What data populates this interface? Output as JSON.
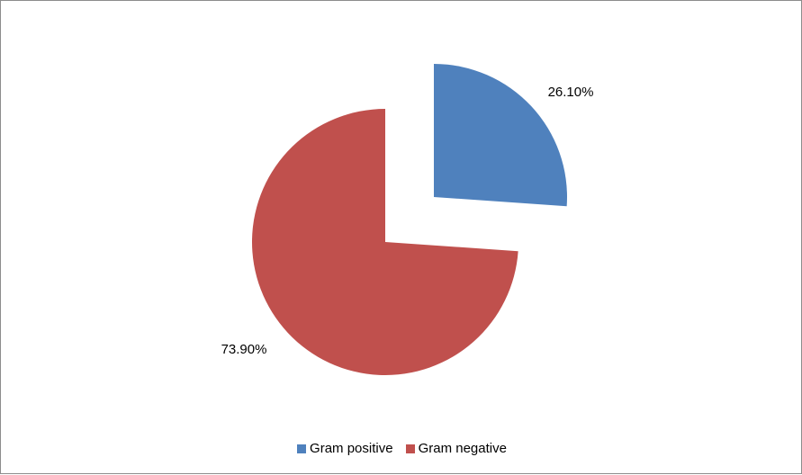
{
  "chart_data": {
    "type": "pie",
    "exploded": true,
    "start_angle_deg": 0,
    "direction": "clockwise",
    "series": [
      {
        "values": [
          26.1,
          73.9
        ]
      }
    ],
    "categories": [
      "Gram positive",
      "Gram negative"
    ],
    "slices": [
      {
        "label": "Gram positive",
        "value": 26.1,
        "data_label": "26.10%",
        "color": "#4F81BD"
      },
      {
        "label": "Gram negative",
        "value": 73.9,
        "data_label": "73.90%",
        "color": "#C0504D"
      }
    ],
    "legend": {
      "position": "bottom",
      "entries": [
        "Gram positive",
        "Gram negative"
      ]
    },
    "title": ""
  }
}
